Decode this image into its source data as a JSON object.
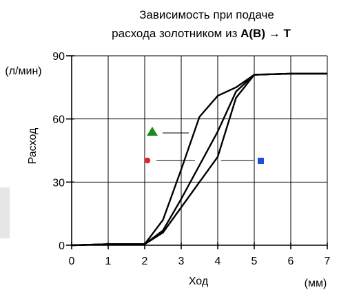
{
  "chart_data": {
    "type": "line",
    "title_line1": "Зависимость при подаче",
    "title_line2_prefix": "расхода золотником из ",
    "title_line2_bold1": "A(B)",
    "title_line2_arrow": " → ",
    "title_line2_bold2": "T",
    "xlabel": "Ход",
    "xunit": "(мм)",
    "ylabel": "Расход",
    "yunit": "(л/мин)",
    "xlim": [
      0,
      7
    ],
    "ylim": [
      0,
      90
    ],
    "xticks": [
      0,
      1,
      2,
      3,
      4,
      5,
      6,
      7
    ],
    "yticks": [
      0,
      30,
      60,
      90
    ],
    "grid": true,
    "series": [
      {
        "marker": "triangle",
        "color": "#1a8a1a",
        "x": [
          0,
          1,
          2,
          2.5,
          3,
          3.5,
          4,
          4.5,
          5,
          6,
          7
        ],
        "y": [
          0,
          0.5,
          0.5,
          12,
          36,
          61,
          71,
          75,
          81,
          81.5,
          81.5
        ]
      },
      {
        "marker": "circle",
        "color": "#e8202a",
        "x": [
          0,
          1,
          2,
          2.5,
          3,
          3.5,
          4,
          4.5,
          5,
          6,
          7
        ],
        "y": [
          0,
          0.5,
          0.5,
          7,
          22,
          38,
          54,
          73,
          81,
          81.5,
          81.5
        ]
      },
      {
        "marker": "square",
        "color": "#1a4fe0",
        "x": [
          0,
          1,
          2,
          2.5,
          3,
          3.5,
          4,
          4.5,
          5,
          6,
          7
        ],
        "y": [
          0,
          0.5,
          0.5,
          6,
          18,
          30,
          42,
          70,
          81,
          81.5,
          81.5
        ]
      }
    ]
  }
}
